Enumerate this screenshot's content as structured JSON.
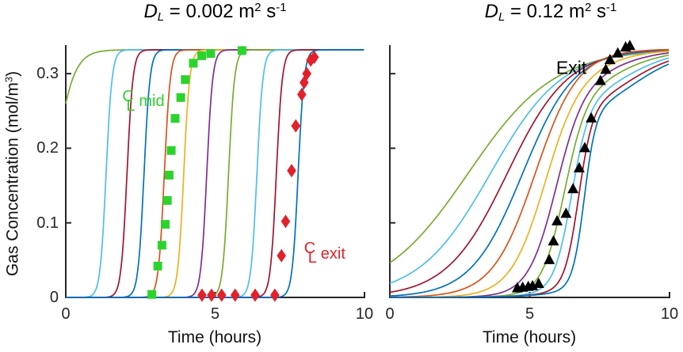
{
  "figure": {
    "background": "#ffffff",
    "titles": {
      "left": {
        "symbol": "D",
        "subscript": "L",
        "eq": " = 0.002 m",
        "sup1": "2",
        "mid": " s",
        "sup2": "-1"
      },
      "right": {
        "symbol": "D",
        "subscript": "L",
        "eq": " = 0.12 m",
        "sup1": "2",
        "mid": " s",
        "sup2": "-1"
      }
    },
    "axes": {
      "ylabel_pre": "Gas Concentration (mol/m",
      "ylabel_sup": "3",
      "ylabel_post": ")",
      "xlabel": "Time (hours)"
    },
    "centerline": {
      "c": "C",
      "l": "L"
    },
    "colors": {
      "axis": "#262626",
      "marker_green": "#2CD32C",
      "marker_red": "#E2212B",
      "marker_black": "#000000"
    }
  },
  "chart_data": [
    {
      "type": "line",
      "panel": "left",
      "title": "D_L = 0.002 m^2 s^-1",
      "xlabel": "Time (hours)",
      "ylabel": "Gas Concentration (mol/m^3)",
      "xlim": [
        0,
        10
      ],
      "ylim": [
        0,
        0.333
      ],
      "xticks": [
        0,
        5,
        10
      ],
      "xtick_labels": [
        "0",
        "5",
        "10"
      ],
      "yticks": [
        0,
        0.1,
        0.2,
        0.3
      ],
      "ytick_labels": [
        "0",
        "0.1",
        "0.2",
        "0.3"
      ],
      "show_ytick_labels": true,
      "grid": false,
      "legend": "none",
      "curve_model": "sum_of_logistics",
      "curves": [
        {
          "name": "pos-01",
          "color": "#77AC30",
          "ymax": 0.332,
          "components": [
            {
              "w": 1,
              "t50": -0.4,
              "k": 3.2
            }
          ]
        },
        {
          "name": "pos-02",
          "color": "#4DBEEE",
          "ymax": 0.332,
          "components": [
            {
              "w": 1,
              "t50": 1.35,
              "k": 10
            }
          ]
        },
        {
          "name": "pos-03",
          "color": "#A2142F",
          "ymax": 0.332,
          "components": [
            {
              "w": 1,
              "t50": 2.05,
              "k": 10
            }
          ]
        },
        {
          "name": "pos-04",
          "color": "#0072BD",
          "ymax": 0.332,
          "components": [
            {
              "w": 1,
              "t50": 2.62,
              "k": 10
            }
          ]
        },
        {
          "name": "pos-05",
          "color": "#D95319",
          "ymax": 0.332,
          "components": [
            {
              "w": 1,
              "t50": 3.3,
              "k": 10
            }
          ]
        },
        {
          "name": "pos-06",
          "color": "#EDB120",
          "ymax": 0.332,
          "components": [
            {
              "w": 1,
              "t50": 3.95,
              "k": 10
            }
          ]
        },
        {
          "name": "pos-07",
          "color": "#7E2F8E",
          "ymax": 0.332,
          "components": [
            {
              "w": 1,
              "t50": 4.72,
              "k": 10
            }
          ]
        },
        {
          "name": "pos-08",
          "color": "#77AC30",
          "ymax": 0.332,
          "components": [
            {
              "w": 1,
              "t50": 5.45,
              "k": 10
            }
          ]
        },
        {
          "name": "pos-09",
          "color": "#4DBEEE",
          "ymax": 0.332,
          "components": [
            {
              "w": 1,
              "t50": 6.4,
              "k": 10
            }
          ]
        },
        {
          "name": "pos-10",
          "color": "#A2142F",
          "ymax": 0.332,
          "components": [
            {
              "w": 1,
              "t50": 7.05,
              "k": 10
            }
          ]
        },
        {
          "name": "pos-11",
          "color": "#0072BD",
          "ymax": 0.332,
          "components": [
            {
              "w": 1,
              "t50": 7.78,
              "k": 10
            }
          ]
        }
      ],
      "markers": [
        {
          "name": "mid-data-squares",
          "shape": "square",
          "color": "#2CD32C",
          "size": 11,
          "points": [
            [
              2.88,
              0.004
            ],
            [
              3.08,
              0.042
            ],
            [
              3.22,
              0.07
            ],
            [
              3.33,
              0.098
            ],
            [
              3.4,
              0.13
            ],
            [
              3.46,
              0.164
            ],
            [
              3.53,
              0.197
            ],
            [
              3.66,
              0.24
            ],
            [
              3.85,
              0.268
            ],
            [
              4.0,
              0.292
            ],
            [
              4.27,
              0.314
            ],
            [
              4.55,
              0.324
            ],
            [
              4.85,
              0.327
            ],
            [
              5.9,
              0.331
            ]
          ]
        },
        {
          "name": "exit-data-diamonds",
          "shape": "diamond",
          "color": "#E2212B",
          "size": 15,
          "points": [
            [
              4.56,
              0.003
            ],
            [
              4.88,
              0.003
            ],
            [
              5.22,
              0.003
            ],
            [
              5.67,
              0.003
            ],
            [
              6.34,
              0.003
            ],
            [
              7.0,
              0.003
            ],
            [
              7.22,
              0.056
            ],
            [
              7.36,
              0.102
            ],
            [
              7.56,
              0.17
            ],
            [
              7.7,
              0.23
            ],
            [
              7.9,
              0.272
            ],
            [
              7.98,
              0.288
            ],
            [
              8.07,
              0.3
            ],
            [
              8.2,
              0.318
            ],
            [
              8.32,
              0.322
            ]
          ]
        }
      ],
      "annotations": [
        {
          "id": "ann-mid",
          "symbol": "centerline",
          "label": "mid",
          "x": 2.6,
          "y": 0.262,
          "color": "#2CD32C"
        },
        {
          "id": "ann-exit-left",
          "symbol": "centerline",
          "label": "exit",
          "x": 8.67,
          "y": 0.058,
          "color": "#E2212B"
        }
      ]
    },
    {
      "type": "line",
      "panel": "right",
      "title": "D_L = 0.12 m^2 s^-1",
      "xlabel": "Time (hours)",
      "ylabel": "Gas Concentration (mol/m^3)",
      "xlim": [
        0,
        10
      ],
      "ylim": [
        0,
        0.333
      ],
      "xticks": [
        0,
        5,
        10
      ],
      "xtick_labels": [
        "0",
        "5",
        "10"
      ],
      "yticks": [
        0,
        0.1,
        0.2,
        0.3
      ],
      "ytick_labels": [],
      "show_ytick_labels": false,
      "grid": false,
      "legend": "none",
      "curve_model": "sum_of_logistics",
      "curves": [
        {
          "name": "pos-01",
          "color": "#77AC30",
          "ymax": 0.333,
          "components": [
            {
              "w": 1,
              "t50": 2.8,
              "k": 0.65
            }
          ]
        },
        {
          "name": "pos-02",
          "color": "#4DBEEE",
          "ymax": 0.333,
          "components": [
            {
              "w": 1,
              "t50": 3.6,
              "k": 0.78
            }
          ]
        },
        {
          "name": "pos-03",
          "color": "#A2142F",
          "ymax": 0.333,
          "components": [
            {
              "w": 1,
              "t50": 4.2,
              "k": 0.92
            }
          ]
        },
        {
          "name": "pos-04",
          "color": "#0072BD",
          "ymax": 0.333,
          "components": [
            {
              "w": 1,
              "t50": 4.75,
              "k": 1.08
            }
          ]
        },
        {
          "name": "pos-05",
          "color": "#D95319",
          "ymax": 0.333,
          "components": [
            {
              "w": 1,
              "t50": 5.2,
              "k": 1.3
            }
          ]
        },
        {
          "name": "pos-06",
          "color": "#EDB120",
          "ymax": 0.333,
          "components": [
            {
              "w": 0.9,
              "t50": 5.55,
              "k": 1.6
            },
            {
              "w": 0.1,
              "t50": 7.5,
              "k": 1.0
            }
          ]
        },
        {
          "name": "pos-07",
          "color": "#7E2F8E",
          "ymax": 0.333,
          "components": [
            {
              "w": 0.85,
              "t50": 5.95,
              "k": 2.0
            },
            {
              "w": 0.15,
              "t50": 7.8,
              "k": 1.0
            }
          ]
        },
        {
          "name": "pos-08",
          "color": "#77AC30",
          "ymax": 0.333,
          "components": [
            {
              "w": 0.8,
              "t50": 6.25,
              "k": 2.5
            },
            {
              "w": 0.2,
              "t50": 8.0,
              "k": 1.0
            }
          ]
        },
        {
          "name": "pos-09",
          "color": "#4DBEEE",
          "ymax": 0.333,
          "components": [
            {
              "w": 0.75,
              "t50": 6.5,
              "k": 3.2
            },
            {
              "w": 0.25,
              "t50": 8.2,
              "k": 1.0
            }
          ]
        },
        {
          "name": "pos-10",
          "color": "#A2142F",
          "ymax": 0.333,
          "components": [
            {
              "w": 0.72,
              "t50": 6.75,
              "k": 4.0
            },
            {
              "w": 0.28,
              "t50": 8.4,
              "k": 1.0
            }
          ]
        },
        {
          "name": "pos-11",
          "color": "#0072BD",
          "ymax": 0.333,
          "components": [
            {
              "w": 0.7,
              "t50": 6.95,
              "k": 4.8
            },
            {
              "w": 0.3,
              "t50": 8.6,
              "k": 1.0
            }
          ]
        }
      ],
      "markers": [
        {
          "name": "exit-data-triangles",
          "shape": "triangle",
          "color": "#000000",
          "size": 14,
          "points": [
            [
              4.56,
              0.012
            ],
            [
              4.75,
              0.013
            ],
            [
              4.95,
              0.014
            ],
            [
              5.1,
              0.015
            ],
            [
              5.32,
              0.018
            ],
            [
              5.7,
              0.05
            ],
            [
              5.85,
              0.075
            ],
            [
              5.98,
              0.102
            ],
            [
              6.3,
              0.112
            ],
            [
              6.55,
              0.145
            ],
            [
              6.77,
              0.173
            ],
            [
              6.97,
              0.2
            ],
            [
              7.2,
              0.24
            ],
            [
              7.53,
              0.29
            ],
            [
              7.72,
              0.305
            ],
            [
              7.87,
              0.318
            ],
            [
              8.15,
              0.327
            ],
            [
              8.43,
              0.335
            ],
            [
              8.58,
              0.337
            ]
          ]
        }
      ],
      "annotations": [
        {
          "id": "ann-exit-right",
          "symbol": "none",
          "label": "Exit",
          "x": 6.49,
          "y": 0.308,
          "color": "#000000"
        }
      ]
    }
  ]
}
